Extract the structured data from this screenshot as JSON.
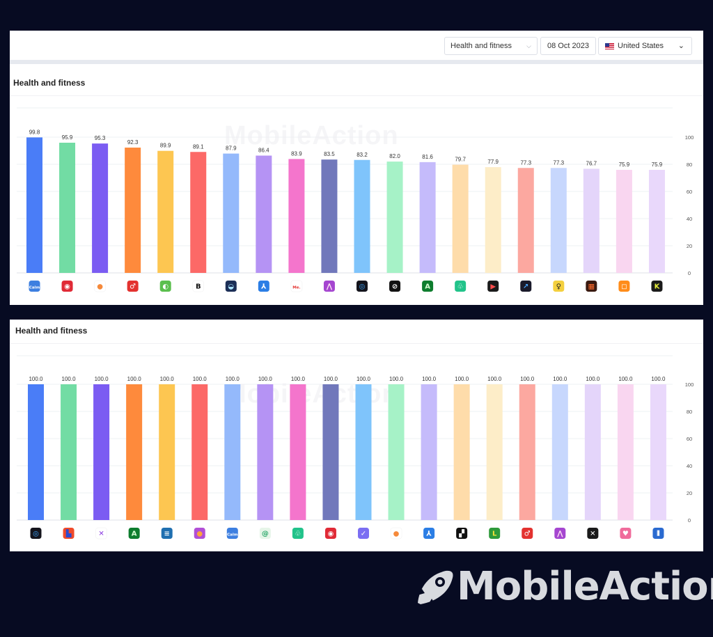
{
  "toolbar": {
    "category": "Health and fitness",
    "date": "08 Oct 2023",
    "country": "United States"
  },
  "watermark": "MobileAction",
  "brand": {
    "name": "MobileAction"
  },
  "colors": {
    "bars": [
      "#4a7df7",
      "#72dca4",
      "#7b5cf2",
      "#fe8a3c",
      "#fdc651",
      "#fc6967",
      "#94b9fb",
      "#b593f4",
      "#f475cc",
      "#7178bb",
      "#7fc4fb",
      "#a6f2c7",
      "#c5bbfb",
      "#fedcaa",
      "#fdedc8",
      "#fca8a0",
      "#c7d7fd",
      "#e4d5fa",
      "#f9d6f0",
      "#e9d8fb"
    ]
  },
  "chart_data": [
    {
      "type": "bar",
      "title": "Health and fitness",
      "ylim": [
        0,
        100
      ],
      "yticks": [
        0,
        20,
        40,
        60,
        80,
        100
      ],
      "values": [
        99.8,
        95.9,
        95.3,
        92.3,
        89.9,
        89.1,
        87.9,
        86.4,
        83.9,
        83.5,
        83.2,
        82.0,
        81.6,
        79.7,
        77.9,
        77.3,
        77.3,
        76.7,
        75.9,
        75.9
      ],
      "labels": [
        "99.8",
        "95.9",
        "95.3",
        "92.3",
        "89.9",
        "89.1",
        "87.9",
        "86.4",
        "83.9",
        "83.5",
        "83.2",
        "82.0",
        "81.6",
        "79.7",
        "77.9",
        "77.3",
        "77.3",
        "76.7",
        "75.9",
        "75.9"
      ],
      "icons": [
        {
          "name": "calm-icon",
          "bg": "#3d7fe0",
          "glyph": "Calm",
          "fg": "#ffffff"
        },
        {
          "name": "red-circle-app-icon",
          "bg": "#e02a36",
          "glyph": "◉",
          "fg": "#ffffff"
        },
        {
          "name": "orange-dot-app-icon",
          "bg": "#ffffff",
          "glyph": "●",
          "fg": "#f5893a"
        },
        {
          "name": "red-male-symbol-app-icon",
          "bg": "#e3322f",
          "glyph": "♂",
          "fg": "#ffffff"
        },
        {
          "name": "green-lens-app-icon",
          "bg": "#5bbf4e",
          "glyph": "◐",
          "fg": "#ffffff"
        },
        {
          "name": "black-b-app-icon",
          "bg": "#ffffff",
          "glyph": "B",
          "fg": "#111111"
        },
        {
          "name": "dark-landscape-app-icon",
          "bg": "#1c2f57",
          "glyph": "◒",
          "fg": "#a8e2ff"
        },
        {
          "name": "blue-figure-app-icon",
          "bg": "#2b7ee5",
          "glyph": "⅄",
          "fg": "#ffffff"
        },
        {
          "name": "me-app-icon",
          "bg": "#ffffff",
          "glyph": "Me.",
          "fg": "#e3322f"
        },
        {
          "name": "purple-pink-figure-app-icon",
          "bg": "#a546d0",
          "glyph": "⋀",
          "fg": "#ffe2f2"
        },
        {
          "name": "blue-ring-app-icon",
          "bg": "#14141c",
          "glyph": "◎",
          "fg": "#3ca6ff"
        },
        {
          "name": "black-slash-app-icon",
          "bg": "#111111",
          "glyph": "⊘",
          "fg": "#ffffff"
        },
        {
          "name": "green-a-app-icon",
          "bg": "#0e7d2e",
          "glyph": "A",
          "fg": "#d8ffd4"
        },
        {
          "name": "teal-trefoil-app-icon",
          "bg": "#22c38a",
          "glyph": "♧",
          "fg": "#ffffff"
        },
        {
          "name": "red-play-app-icon",
          "bg": "#1a1a1a",
          "glyph": "▶",
          "fg": "#ff4d4d"
        },
        {
          "name": "dark-arrow-app-icon",
          "bg": "#1a1a2a",
          "glyph": "↗",
          "fg": "#4aa8ff"
        },
        {
          "name": "yellow-figure-app-icon",
          "bg": "#f4d03f",
          "glyph": "♀",
          "fg": "#222222"
        },
        {
          "name": "dark-grid-app-icon",
          "bg": "#3a1a10",
          "glyph": "▦",
          "fg": "#ff6a2a"
        },
        {
          "name": "orange-square-app-icon",
          "bg": "#ff8c1a",
          "glyph": "◻",
          "fg": "#ffffff"
        },
        {
          "name": "yellow-x-app-icon",
          "bg": "#1a1a1a",
          "glyph": "K",
          "fg": "#e8f03a"
        }
      ]
    },
    {
      "type": "bar",
      "title": "Health and fitness",
      "ylim": [
        0,
        100
      ],
      "yticks": [
        0,
        20,
        40,
        60,
        80,
        100
      ],
      "values": [
        100.0,
        100.0,
        100.0,
        100.0,
        100.0,
        100.0,
        100.0,
        100.0,
        100.0,
        100.0,
        100.0,
        100.0,
        100.0,
        100.0,
        100.0,
        100.0,
        100.0,
        100.0,
        100.0,
        100.0
      ],
      "labels": [
        "100.0",
        "100.0",
        "100.0",
        "100.0",
        "100.0",
        "100.0",
        "100.0",
        "100.0",
        "100.0",
        "100.0",
        "100.0",
        "100.0",
        "100.0",
        "100.0",
        "100.0",
        "100.0",
        "100.0",
        "100.0",
        "100.0",
        "100.0"
      ],
      "icons": [
        {
          "name": "blue-ring-app-icon",
          "bg": "#14141c",
          "glyph": "◎",
          "fg": "#3ca6ff"
        },
        {
          "name": "colorful-book-app-icon",
          "bg": "#f04a2a",
          "glyph": "▙",
          "fg": "#2a4ad0"
        },
        {
          "name": "purple-x-app-icon",
          "bg": "#ffffff",
          "glyph": "✕",
          "fg": "#8a3ae0"
        },
        {
          "name": "green-a-app-icon",
          "bg": "#0e7d2e",
          "glyph": "A",
          "fg": "#d8ffd4"
        },
        {
          "name": "blue-gradient-app-icon",
          "bg": "#1f6fb0",
          "glyph": "≡",
          "fg": "#ffffff"
        },
        {
          "name": "purple-orange-app-icon",
          "bg": "#b14fd6",
          "glyph": "●",
          "fg": "#ffa43a"
        },
        {
          "name": "calm-icon",
          "bg": "#3d7fe0",
          "glyph": "Calm",
          "fg": "#ffffff"
        },
        {
          "name": "green-swirl-app-icon",
          "bg": "#e6f5e8",
          "glyph": "@",
          "fg": "#2aa86a"
        },
        {
          "name": "teal-trefoil-app-icon",
          "bg": "#22c38a",
          "glyph": "♧",
          "fg": "#ffffff"
        },
        {
          "name": "red-circle-app-icon",
          "bg": "#e02a36",
          "glyph": "◉",
          "fg": "#ffffff"
        },
        {
          "name": "purple-p-app-icon",
          "bg": "#7b6ef2",
          "glyph": "✓",
          "fg": "#ffffff"
        },
        {
          "name": "orange-dot-app-icon",
          "bg": "#ffffff",
          "glyph": "●",
          "fg": "#f5893a"
        },
        {
          "name": "blue-figure-app-icon",
          "bg": "#2b7ee5",
          "glyph": "⅄",
          "fg": "#ffffff"
        },
        {
          "name": "black-steps-app-icon",
          "bg": "#111111",
          "glyph": "▞",
          "fg": "#ffffff"
        },
        {
          "name": "green-l-app-icon",
          "bg": "#2e9a3a",
          "glyph": "L",
          "fg": "#f5e23a"
        },
        {
          "name": "red-male-symbol-app-icon",
          "bg": "#e3322f",
          "glyph": "♂",
          "fg": "#ffffff"
        },
        {
          "name": "purple-pink-figure-app-icon",
          "bg": "#a546d0",
          "glyph": "⋀",
          "fg": "#ffe2f2"
        },
        {
          "name": "black-x-app-icon",
          "bg": "#1a1a1a",
          "glyph": "✕",
          "fg": "#ffffff"
        },
        {
          "name": "pink-heart-app-icon",
          "bg": "#f06c9b",
          "glyph": "♥",
          "fg": "#ffffff"
        },
        {
          "name": "blue-waveform-app-icon",
          "bg": "#2a6ad0",
          "glyph": "⦀",
          "fg": "#ffffff"
        }
      ]
    }
  ]
}
